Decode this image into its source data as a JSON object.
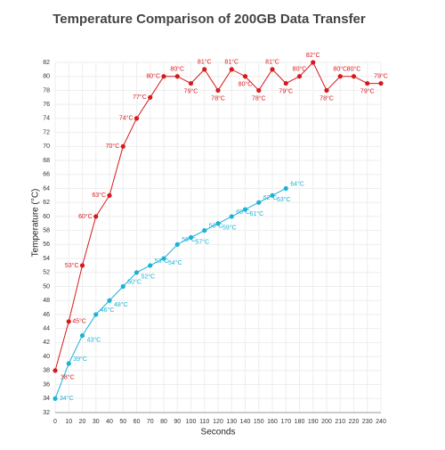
{
  "chart_data": {
    "type": "line",
    "title": "Temperature Comparison of 200GB Data Transfer",
    "x_label": "Seconds",
    "y_label": "Temperature (°C)",
    "x": [
      0,
      10,
      20,
      30,
      40,
      50,
      60,
      70,
      80,
      90,
      100,
      110,
      120,
      130,
      140,
      150,
      160,
      170,
      180,
      190,
      200,
      210,
      220,
      230,
      240
    ],
    "series": [
      {
        "color": "#d7191c",
        "values": [
          38,
          45,
          53,
          60,
          63,
          70,
          74,
          77,
          80,
          80,
          79,
          81,
          78,
          81,
          80,
          78,
          81,
          79,
          80,
          82,
          78,
          80,
          80,
          79,
          79
        ],
        "value_labels": [
          "38°C",
          "45°C",
          "53°C",
          "60°C",
          "63°C",
          "70°C",
          "74°C",
          "77°C",
          "80°C",
          "80°C",
          "79°C",
          "81°C",
          "78°C",
          "81°C",
          "80°C",
          "78°C",
          "81°C",
          "79°C",
          "80°C",
          "82°C",
          "78°C",
          "80°C",
          "80°C",
          "79°C",
          "79°C"
        ]
      },
      {
        "color": "#1ab2d6",
        "values": [
          34,
          39,
          43,
          46,
          48,
          50,
          52,
          53,
          54,
          56,
          57,
          58,
          59,
          60,
          61,
          62,
          63,
          64,
          null,
          null,
          null,
          null,
          null,
          null,
          null
        ],
        "value_labels": [
          "34°C",
          "39°C",
          "43°C",
          "46°C",
          "48°C",
          "50°C",
          "52°C",
          "53°C",
          "54°C",
          "56°C",
          "57°C",
          "58°C",
          "59°C",
          "60°C",
          "61°C",
          "62°C",
          "63°C",
          "64°C",
          null,
          null,
          null,
          null,
          null,
          null,
          null
        ]
      }
    ],
    "xlim": [
      0,
      240
    ],
    "xticks": [
      0,
      10,
      20,
      30,
      40,
      50,
      60,
      70,
      80,
      90,
      100,
      110,
      120,
      130,
      140,
      150,
      160,
      170,
      180,
      190,
      200,
      210,
      220,
      230,
      240
    ],
    "ylim": [
      32,
      82
    ],
    "yticks": [
      32,
      34,
      36,
      38,
      40,
      42,
      44,
      46,
      48,
      50,
      52,
      54,
      56,
      58,
      60,
      62,
      64,
      66,
      68,
      70,
      72,
      74,
      76,
      78,
      80,
      82
    ],
    "grid": true
  }
}
